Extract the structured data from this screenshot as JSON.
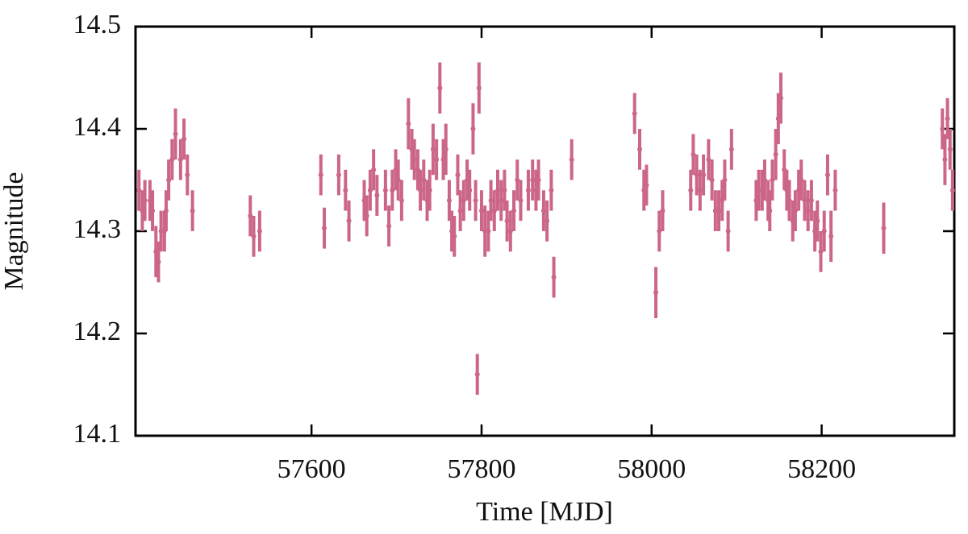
{
  "chart_data": {
    "type": "scatter",
    "x_label": "Time [MJD]",
    "y_label": "Magnitude",
    "color": "#cc6688",
    "x": [
      57397,
      57401,
      57404,
      57410,
      57413,
      57417,
      57420,
      57423,
      57427,
      57429,
      57432,
      57436,
      57440,
      57446,
      57450,
      57454,
      57460,
      57528,
      57532,
      57539,
      57611,
      57615,
      57632,
      57640,
      57644,
      57662,
      57665,
      57669,
      57673,
      57677,
      57687,
      57691,
      57695,
      57699,
      57702,
      57706,
      57714,
      57718,
      57721,
      57725,
      57728,
      57732,
      57736,
      57739,
      57743,
      57747,
      57751,
      57755,
      57758,
      57762,
      57765,
      57768,
      57772,
      57775,
      57779,
      57783,
      57786,
      57790,
      57793,
      57795,
      57797,
      57800,
      57804,
      57808,
      57811,
      57815,
      57819,
      57823,
      57827,
      57830,
      57834,
      57838,
      57842,
      57846,
      57855,
      57860,
      57864,
      57867,
      57873,
      57877,
      57882,
      57885,
      57906,
      57980,
      57986,
      57991,
      57994,
      58005,
      58009,
      58013,
      58046,
      58049,
      58053,
      58057,
      58061,
      58067,
      58071,
      58075,
      58079,
      58083,
      58086,
      58090,
      58094,
      58123,
      58126,
      58130,
      58133,
      58137,
      58139,
      58142,
      58146,
      58149,
      58152,
      58156,
      58159,
      58162,
      58166,
      58169,
      58173,
      58176,
      58180,
      58184,
      58188,
      58192,
      58195,
      58199,
      58203,
      58207,
      58211,
      58216,
      58273,
      58342,
      58345,
      58348,
      58351,
      58354
    ],
    "values": [
      14.34,
      14.32,
      14.33,
      14.33,
      14.32,
      14.28,
      14.27,
      14.3,
      14.3,
      14.32,
      14.35,
      14.37,
      14.395,
      14.37,
      14.39,
      14.355,
      14.32,
      14.315,
      14.295,
      14.3,
      14.355,
      14.303,
      14.355,
      14.34,
      14.31,
      14.33,
      14.315,
      14.34,
      14.36,
      14.335,
      14.34,
      14.305,
      14.34,
      14.36,
      14.35,
      14.33,
      14.405,
      14.38,
      14.37,
      14.36,
      14.34,
      14.35,
      14.33,
      14.34,
      14.38,
      14.37,
      14.44,
      14.37,
      14.38,
      14.33,
      14.3,
      14.295,
      14.355,
      14.32,
      14.33,
      14.35,
      14.34,
      14.4,
      14.33,
      14.16,
      14.44,
      14.32,
      14.3,
      14.3,
      14.33,
      14.32,
      14.34,
      14.33,
      14.34,
      14.31,
      14.3,
      14.32,
      14.35,
      14.33,
      14.34,
      14.35,
      14.34,
      14.35,
      14.32,
      14.31,
      14.34,
      14.255,
      14.37,
      14.415,
      14.38,
      14.34,
      14.345,
      14.24,
      14.3,
      14.32,
      14.34,
      14.375,
      14.355,
      14.34,
      14.355,
      14.37,
      14.35,
      14.32,
      14.32,
      14.33,
      14.35,
      14.3,
      14.38,
      14.33,
      14.34,
      14.34,
      14.35,
      14.33,
      14.32,
      14.35,
      14.375,
      14.41,
      14.43,
      14.36,
      14.34,
      14.33,
      14.31,
      14.32,
      14.34,
      14.35,
      14.33,
      14.32,
      14.33,
      14.3,
      14.31,
      14.28,
      14.3,
      14.355,
      14.295,
      14.34,
      14.303,
      14.4,
      14.37,
      14.41,
      14.38,
      14.34
    ],
    "errors": [
      0.02,
      0.02,
      0.02,
      0.02,
      0.02,
      0.025,
      0.02,
      0.02,
      0.02,
      0.02,
      0.02,
      0.02,
      0.025,
      0.02,
      0.02,
      0.02,
      0.02,
      0.02,
      0.02,
      0.02,
      0.02,
      0.02,
      0.02,
      0.02,
      0.02,
      0.02,
      0.02,
      0.02,
      0.02,
      0.02,
      0.02,
      0.02,
      0.02,
      0.02,
      0.02,
      0.02,
      0.025,
      0.02,
      0.02,
      0.02,
      0.02,
      0.02,
      0.02,
      0.02,
      0.025,
      0.02,
      0.025,
      0.02,
      0.025,
      0.02,
      0.02,
      0.02,
      0.02,
      0.02,
      0.02,
      0.02,
      0.02,
      0.025,
      0.02,
      0.02,
      0.025,
      0.02,
      0.025,
      0.02,
      0.02,
      0.02,
      0.02,
      0.02,
      0.02,
      0.02,
      0.02,
      0.02,
      0.02,
      0.02,
      0.02,
      0.02,
      0.02,
      0.02,
      0.02,
      0.02,
      0.02,
      0.02,
      0.02,
      0.02,
      0.02,
      0.02,
      0.02,
      0.025,
      0.02,
      0.02,
      0.02,
      0.02,
      0.02,
      0.02,
      0.02,
      0.02,
      0.02,
      0.02,
      0.02,
      0.02,
      0.02,
      0.02,
      0.02,
      0.02,
      0.02,
      0.02,
      0.02,
      0.02,
      0.02,
      0.02,
      0.025,
      0.025,
      0.025,
      0.02,
      0.02,
      0.02,
      0.02,
      0.02,
      0.02,
      0.02,
      0.02,
      0.02,
      0.02,
      0.02,
      0.02,
      0.02,
      0.02,
      0.02,
      0.025,
      0.02,
      0.025,
      0.02,
      0.025,
      0.02,
      0.02,
      0.02
    ],
    "xlim": [
      57393,
      58356
    ],
    "xticks": [
      57600,
      57800,
      58000,
      58200
    ],
    "ylim": [
      14.1,
      14.5
    ],
    "yticks": [
      14.1,
      14.2,
      14.3,
      14.4,
      14.5
    ]
  }
}
